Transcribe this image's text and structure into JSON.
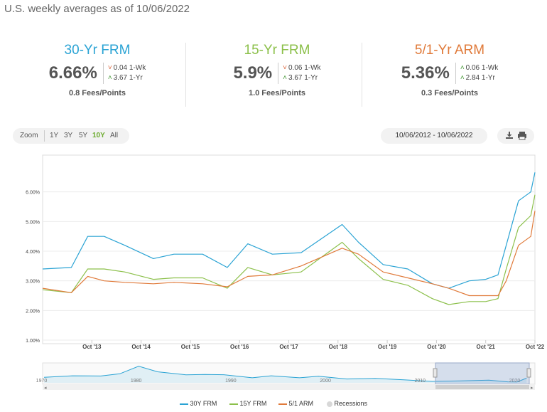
{
  "header": {
    "subtitle": "U.S. weekly averages as of 10/06/2022"
  },
  "rates": [
    {
      "name": "30-Yr FRM",
      "color": "#2aa3d4",
      "rate": "6.66%",
      "week_change": "0.04 1-Wk",
      "week_dir": "down",
      "year_change": "3.67 1-Yr",
      "year_dir": "up",
      "fees": "0.8 Fees/Points"
    },
    {
      "name": "15-Yr FRM",
      "color": "#8cc04b",
      "rate": "5.9%",
      "week_change": "0.06 1-Wk",
      "week_dir": "down",
      "year_change": "3.67 1-Yr",
      "year_dir": "up",
      "fees": "1.0 Fees/Points"
    },
    {
      "name": "5/1-Yr ARM",
      "color": "#e07a3a",
      "rate": "5.36%",
      "week_change": "0.06 1-Wk",
      "week_dir": "up",
      "year_change": "2.84 1-Yr",
      "year_dir": "up",
      "fees": "0.3 Fees/Points"
    }
  ],
  "toolbar": {
    "zoom_label": "Zoom",
    "ranges": [
      "1Y",
      "3Y",
      "5Y",
      "10Y",
      "All"
    ],
    "active_range": "10Y",
    "active_color": "#6cab2e",
    "date_range": "10/06/2012 - 10/06/2022",
    "download_icon": "download-icon",
    "print_icon": "printer-icon"
  },
  "legend": {
    "items": [
      {
        "label": "30Y FRM",
        "color": "#2aa3d4"
      },
      {
        "label": "15Y FRM",
        "color": "#8cc04b"
      },
      {
        "label": "5/1 ARM",
        "color": "#e07a3a"
      },
      {
        "label": "Recessions",
        "color": "#d8d8d8"
      }
    ]
  },
  "chart_data": [
    {
      "type": "line",
      "ylim": [
        1.0,
        7.0
      ],
      "y_ticks": [
        "1.00%",
        "2.00%",
        "3.00%",
        "4.00%",
        "5.00%",
        "6.00%"
      ],
      "x_ticks": [
        "Oct '13",
        "Oct '14",
        "Oct '15",
        "Oct '16",
        "Oct '17",
        "Oct '18",
        "Oct '19",
        "Oct '20",
        "Oct '21",
        "Oct '22"
      ],
      "x": [
        "2012-10",
        "2013-05",
        "2013-09",
        "2014-01",
        "2014-06",
        "2015-01",
        "2015-06",
        "2016-01",
        "2016-07",
        "2016-12",
        "2017-06",
        "2018-01",
        "2018-11",
        "2019-03",
        "2019-09",
        "2020-03",
        "2020-09",
        "2021-01",
        "2021-06",
        "2021-10",
        "2022-01",
        "2022-03",
        "2022-06",
        "2022-09",
        "2022-10"
      ],
      "series": [
        {
          "name": "30Y FRM",
          "color": "#2aa3d4",
          "values": [
            3.4,
            3.45,
            4.5,
            4.5,
            4.2,
            3.75,
            3.9,
            3.9,
            3.45,
            4.25,
            3.9,
            3.95,
            4.9,
            4.3,
            3.55,
            3.4,
            2.9,
            2.75,
            3.0,
            3.05,
            3.2,
            4.2,
            5.7,
            6.0,
            6.66
          ]
        },
        {
          "name": "15Y FRM",
          "color": "#8cc04b",
          "values": [
            2.7,
            2.6,
            3.4,
            3.4,
            3.3,
            3.05,
            3.1,
            3.1,
            2.75,
            3.45,
            3.2,
            3.3,
            4.3,
            3.75,
            3.05,
            2.85,
            2.4,
            2.2,
            2.3,
            2.3,
            2.4,
            3.4,
            4.8,
            5.2,
            5.9
          ]
        },
        {
          "name": "5/1 ARM",
          "color": "#e07a3a",
          "values": [
            2.75,
            2.6,
            3.15,
            3.0,
            2.95,
            2.9,
            2.95,
            2.9,
            2.8,
            3.15,
            3.2,
            3.5,
            4.1,
            3.9,
            3.3,
            3.1,
            2.9,
            2.75,
            2.5,
            2.5,
            2.5,
            3.0,
            4.2,
            4.5,
            5.36
          ]
        }
      ]
    },
    {
      "type": "area",
      "x_ticks": [
        "1970",
        "1980",
        "1990",
        "2000",
        "2010",
        "2020"
      ],
      "series": [
        {
          "name": "30Y FRM",
          "color": "#2aa3d4",
          "x": [
            1971,
            1974,
            1977,
            1979,
            1981,
            1983,
            1986,
            1988,
            1990,
            1993,
            1995,
            1998,
            2000,
            2003,
            2006,
            2009,
            2012,
            2015,
            2018,
            2020,
            2021,
            2022
          ],
          "values": [
            7.5,
            9.0,
            8.8,
            11.0,
            18.5,
            13.0,
            10.0,
            10.3,
            10.1,
            7.0,
            9.0,
            7.0,
            8.5,
            5.8,
            6.4,
            5.0,
            3.4,
            3.9,
            4.6,
            3.0,
            2.9,
            6.7
          ]
        }
      ]
    }
  ]
}
